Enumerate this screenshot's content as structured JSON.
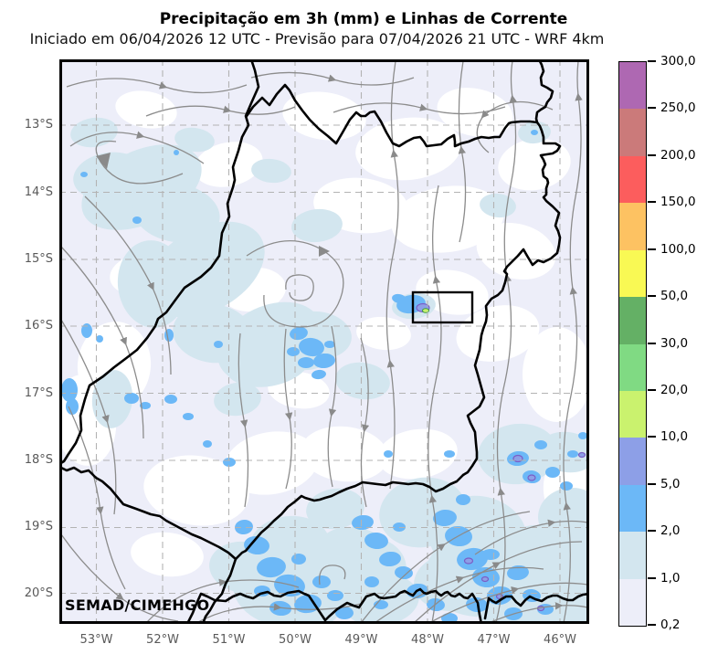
{
  "figure": {
    "title": "Precipitação em 3h (mm) e Linhas de Corrente",
    "subtitle": "Iniciado em 06/04/2026 12 UTC - Previsão para 07/04/2026 21 UTC - WRF 4km",
    "watermark": "SEMAD/CIMEHGO"
  },
  "map": {
    "lat_ticks": [
      "13°S",
      "14°S",
      "15°S",
      "16°S",
      "17°S",
      "18°S",
      "19°S",
      "20°S"
    ],
    "lon_ticks": [
      "53°W",
      "52°W",
      "51°W",
      "50°W",
      "49°W",
      "48°W",
      "47°W",
      "46°W"
    ]
  },
  "colorbar": {
    "tick_labels_top_to_bottom": [
      "300,0",
      "250,0",
      "200,0",
      "150,0",
      "100,0",
      "50,0",
      "30,0",
      "20,0",
      "10,0",
      "5,0",
      "2,0",
      "1,0",
      "0,2"
    ],
    "segment_colors_top_to_bottom": [
      "#ae68b2",
      "#cb7a7a",
      "#fc5d5d",
      "#fdc262",
      "#f9f954",
      "#64b065",
      "#80da83",
      "#caf26e",
      "#8d9fe7",
      "#6cb8f7",
      "#d3e6ef",
      "#edeef9"
    ]
  },
  "palette": {
    "light_precip_background": "#edeef9",
    "no_precip": "#ffffff",
    "precip_1_2": "#d3e6ef",
    "precip_2_5": "#6cb8f7",
    "precip_5_10": "#8d9fe7",
    "precip_10_20": "#caf26e",
    "streamline_gray": "#8c8c8c",
    "gridline_gray": "#b3b3b3",
    "boundary_black": "#000000"
  }
}
